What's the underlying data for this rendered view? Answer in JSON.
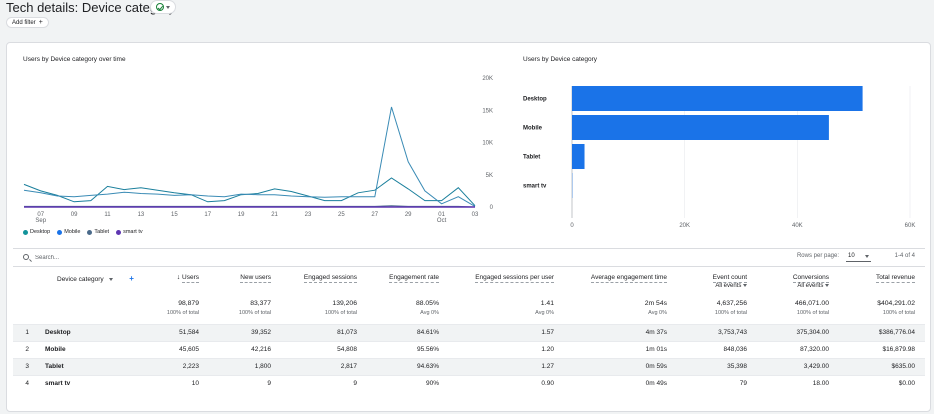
{
  "header": {
    "title": "Tech details: Device category",
    "add_filter_label": "Add filter",
    "plus": "+"
  },
  "colors": {
    "desktop": "#12939a",
    "mobile": "#1a73e8",
    "tablet": "#4a6a8a",
    "smart_tv": "#5e35b1",
    "bar": "#1a73e8"
  },
  "line_chart": {
    "title": "Users by Device category over time",
    "y_ticks": [
      "20K",
      "15K",
      "10K",
      "5K",
      "0"
    ],
    "x_ticks": [
      {
        "day": "07",
        "month": "Sep"
      },
      {
        "day": "09",
        "month": ""
      },
      {
        "day": "11",
        "month": ""
      },
      {
        "day": "13",
        "month": ""
      },
      {
        "day": "15",
        "month": ""
      },
      {
        "day": "17",
        "month": ""
      },
      {
        "day": "19",
        "month": ""
      },
      {
        "day": "21",
        "month": ""
      },
      {
        "day": "23",
        "month": ""
      },
      {
        "day": "25",
        "month": ""
      },
      {
        "day": "27",
        "month": ""
      },
      {
        "day": "29",
        "month": ""
      },
      {
        "day": "01",
        "month": "Oct"
      },
      {
        "day": "03",
        "month": ""
      }
    ],
    "legend": [
      "Desktop",
      "Mobile",
      "Tablet",
      "smart tv"
    ]
  },
  "bar_chart": {
    "title": "Users by Device category",
    "x_ticks": [
      "0",
      "20K",
      "40K",
      "60K"
    ]
  },
  "chart_data": [
    {
      "type": "line",
      "x": [
        "Sep 6",
        "Sep 7",
        "Sep 8",
        "Sep 9",
        "Sep 10",
        "Sep 11",
        "Sep 12",
        "Sep 13",
        "Sep 14",
        "Sep 15",
        "Sep 16",
        "Sep 17",
        "Sep 18",
        "Sep 19",
        "Sep 20",
        "Sep 21",
        "Sep 22",
        "Sep 23",
        "Sep 24",
        "Sep 25",
        "Sep 26",
        "Sep 27",
        "Sep 28",
        "Sep 29",
        "Sep 30",
        "Oct 1",
        "Oct 2",
        "Oct 3"
      ],
      "series": [
        {
          "name": "Desktop",
          "values": [
            3500,
            2500,
            1800,
            800,
            1000,
            3200,
            2700,
            3000,
            2600,
            2200,
            1900,
            800,
            1000,
            1900,
            2100,
            2800,
            2400,
            1700,
            1000,
            1000,
            2200,
            2600,
            4500,
            2800,
            1000,
            1000,
            3000,
            200
          ]
        },
        {
          "name": "Mobile",
          "values": [
            2600,
            2200,
            1700,
            1600,
            1800,
            2000,
            2300,
            2100,
            2000,
            1800,
            1900,
            1700,
            1600,
            2000,
            1900,
            1900,
            1700,
            1600,
            1500,
            1600,
            1600,
            1600,
            15500,
            7000,
            2500,
            500,
            1600,
            100
          ]
        },
        {
          "name": "Tablet",
          "values": [
            100,
            100,
            100,
            100,
            100,
            100,
            100,
            100,
            100,
            100,
            100,
            100,
            100,
            100,
            100,
            100,
            100,
            100,
            100,
            100,
            100,
            100,
            200,
            100,
            100,
            100,
            100,
            0
          ]
        },
        {
          "name": "smart tv",
          "values": [
            0,
            0,
            0,
            0,
            0,
            0,
            0,
            0,
            0,
            0,
            0,
            0,
            0,
            0,
            0,
            0,
            0,
            0,
            0,
            0,
            0,
            0,
            0,
            0,
            0,
            0,
            0,
            0
          ]
        }
      ],
      "ylim": [
        0,
        20000
      ]
    },
    {
      "type": "bar",
      "categories": [
        "Desktop",
        "Mobile",
        "Tablet",
        "smart tv"
      ],
      "values": [
        51584,
        45605,
        2223,
        10
      ],
      "xlim": [
        0,
        60000
      ]
    }
  ],
  "table": {
    "search_placeholder": "Search...",
    "rows_per_page_label": "Rows per page:",
    "rows_per_page_value": "10",
    "pagination": "1-4 of 4",
    "dimension_header": "Device category",
    "add_column": "+",
    "sort_arrow": "↓",
    "columns": [
      "Users",
      "New users",
      "Engaged sessions",
      "Engagement rate",
      "Engaged sessions per user",
      "Average engagement time",
      "Event count",
      "Conversions",
      "Total revenue"
    ],
    "events_select": "All events",
    "totals": [
      "98,879",
      "83,377",
      "139,206",
      "88.05%",
      "1.41",
      "2m 54s",
      "4,637,256",
      "466,071.00",
      "$404,291.02"
    ],
    "totals_sub": [
      "100% of total",
      "100% of total",
      "100% of total",
      "Avg 0%",
      "Avg 0%",
      "Avg 0%",
      "100% of total",
      "100% of total",
      "100% of total"
    ],
    "rows": [
      {
        "index": "1",
        "name": "Desktop",
        "values": [
          "51,584",
          "39,352",
          "81,073",
          "84.61%",
          "1.57",
          "4m 37s",
          "3,753,743",
          "375,304.00",
          "$386,776.04"
        ]
      },
      {
        "index": "2",
        "name": "Mobile",
        "values": [
          "45,605",
          "42,216",
          "54,808",
          "95.56%",
          "1.20",
          "1m 01s",
          "848,036",
          "87,320.00",
          "$16,879.98"
        ]
      },
      {
        "index": "3",
        "name": "Tablet",
        "values": [
          "2,223",
          "1,800",
          "2,817",
          "94.63%",
          "1.27",
          "0m 59s",
          "35,398",
          "3,429.00",
          "$635.00"
        ]
      },
      {
        "index": "4",
        "name": "smart tv",
        "values": [
          "10",
          "9",
          "9",
          "90%",
          "0.90",
          "0m 49s",
          "79",
          "18.00",
          "$0.00"
        ]
      }
    ]
  }
}
